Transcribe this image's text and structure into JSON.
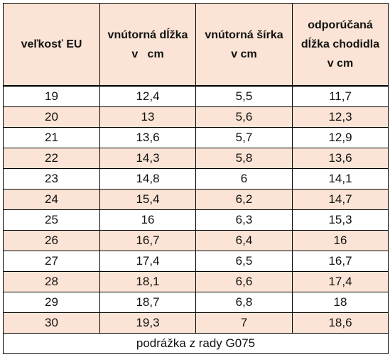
{
  "table": {
    "headers": [
      [
        "veľkosť EU"
      ],
      [
        "vnútorná dĺžka",
        "v   cm"
      ],
      [
        "vnútorná šírka",
        "v cm"
      ],
      [
        "odporúčaná",
        "dĺžka chodidla",
        "v cm"
      ]
    ],
    "rows": [
      [
        "19",
        "12,4",
        "5,5",
        "11,7"
      ],
      [
        "20",
        "13",
        "5,6",
        "12,3"
      ],
      [
        "21",
        "13,6",
        "5,7",
        "12,9"
      ],
      [
        "22",
        "14,3",
        "5,8",
        "13,6"
      ],
      [
        "23",
        "14,8",
        "6",
        "14,1"
      ],
      [
        "24",
        "15,4",
        "6,2",
        "14,7"
      ],
      [
        "25",
        "16",
        "6,3",
        "15,3"
      ],
      [
        "26",
        "16,7",
        "6,4",
        "16"
      ],
      [
        "27",
        "17,4",
        "6,5",
        "16,7"
      ],
      [
        "28",
        "18,1",
        "6,6",
        "17,4"
      ],
      [
        "29",
        "18,7",
        "6,8",
        "18"
      ],
      [
        "30",
        "19,3",
        "7",
        "18,6"
      ]
    ],
    "footer": "podrážka z rady G075"
  },
  "colors": {
    "header_bg": "#fbe4d5",
    "alt_row_bg": "#fbe4d5",
    "border": "#000000"
  }
}
